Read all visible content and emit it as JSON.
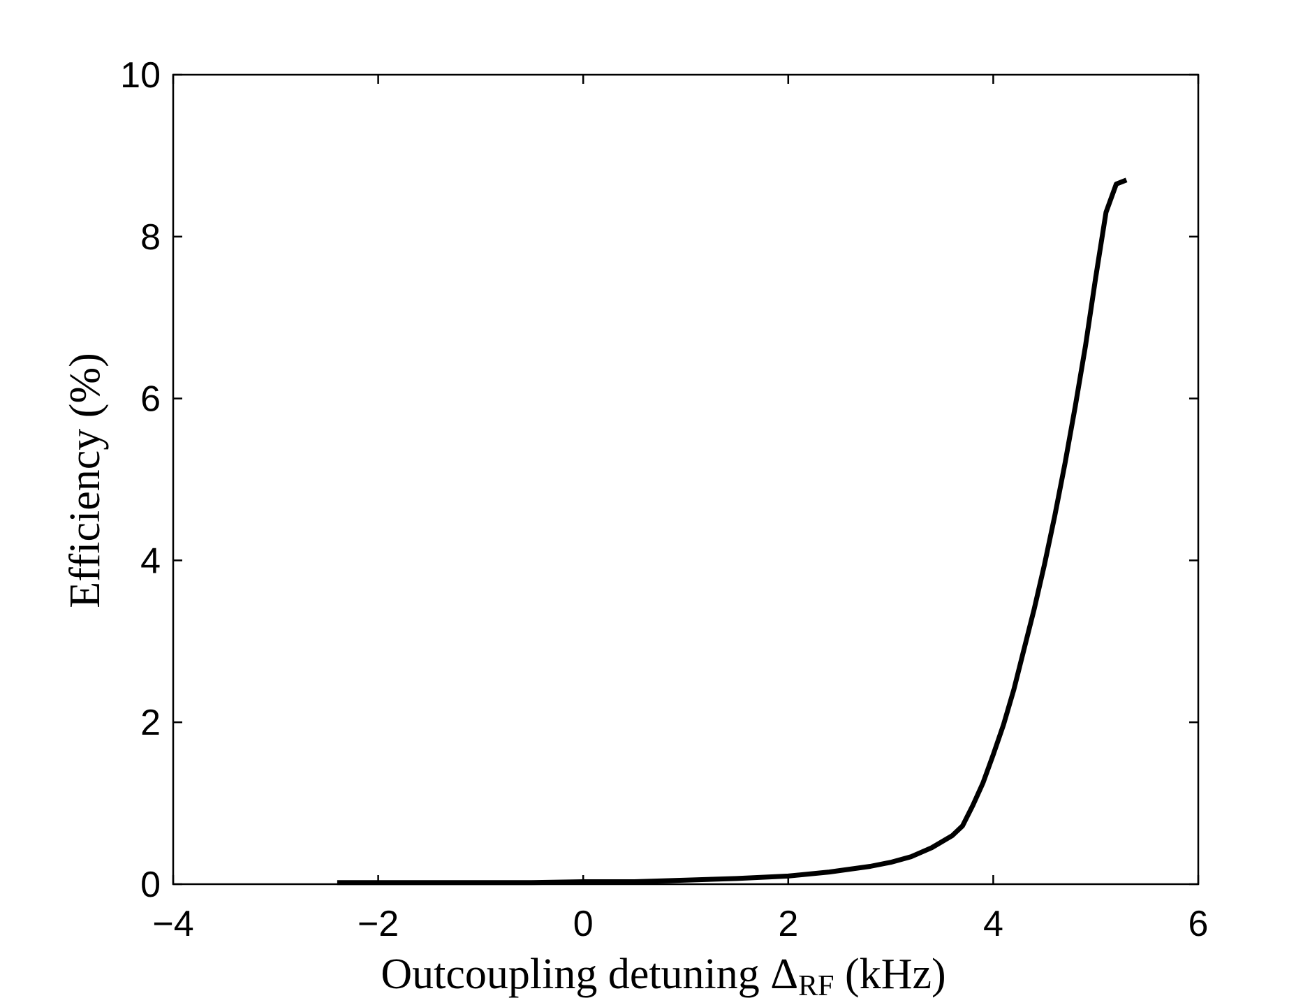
{
  "chart_data": {
    "type": "line",
    "title": "",
    "xlabel": {
      "text": "Outcoupling detuning ",
      "symbol": "Δ",
      "subscript": "RF",
      "unit": " (kHz)"
    },
    "ylabel": "Efficiency (%)",
    "xlim": [
      -4,
      6
    ],
    "ylim": [
      0,
      10
    ],
    "xticks": [
      -4,
      -2,
      0,
      2,
      4,
      6
    ],
    "xtick_labels": [
      "−4",
      "−2",
      "0",
      "2",
      "4",
      "6"
    ],
    "yticks": [
      0,
      2,
      4,
      6,
      8,
      10
    ],
    "ytick_labels": [
      "0",
      "2",
      "4",
      "6",
      "8",
      "10"
    ],
    "grid": false,
    "line_color": "#000000",
    "series": [
      {
        "x": [
          -2.4,
          -2.0,
          -1.5,
          -1.0,
          -0.5,
          0.0,
          0.5,
          1.0,
          1.5,
          2.0,
          2.4,
          2.8,
          3.0,
          3.2,
          3.4,
          3.6,
          3.7,
          3.8,
          3.9,
          4.0,
          4.1,
          4.2,
          4.3,
          4.4,
          4.5,
          4.6,
          4.7,
          4.8,
          4.9,
          5.0,
          5.1,
          5.2,
          5.3
        ],
        "y": [
          0.02,
          0.02,
          0.02,
          0.02,
          0.02,
          0.03,
          0.03,
          0.05,
          0.07,
          0.1,
          0.15,
          0.22,
          0.27,
          0.34,
          0.45,
          0.6,
          0.72,
          0.97,
          1.25,
          1.6,
          1.97,
          2.4,
          2.9,
          3.4,
          3.95,
          4.55,
          5.2,
          5.9,
          6.65,
          7.5,
          8.3,
          8.65,
          8.7
        ]
      }
    ]
  }
}
